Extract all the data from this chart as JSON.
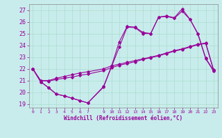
{
  "title": "",
  "xlabel": "Windchill (Refroidissement éolien,°C)",
  "bg_color": "#c8ecec",
  "line_color": "#990099",
  "grid_color": "#aaddcc",
  "ylim": [
    18.7,
    27.5
  ],
  "xlim": [
    -0.5,
    23.5
  ],
  "yticks": [
    19,
    20,
    21,
    22,
    23,
    24,
    25,
    26,
    27
  ],
  "xticks": [
    0,
    1,
    2,
    3,
    4,
    5,
    6,
    7,
    9,
    10,
    11,
    12,
    13,
    14,
    15,
    16,
    17,
    18,
    19,
    20,
    21,
    22,
    23
  ],
  "xtick_labels": [
    "0",
    "1",
    "2",
    "3",
    "4",
    "5",
    "6",
    "7",
    "9",
    "10",
    "11",
    "12",
    "13",
    "14",
    "15",
    "16",
    "17",
    "18",
    "19",
    "20",
    "21",
    "22",
    "23"
  ],
  "series": [
    {
      "x": [
        0,
        1,
        2,
        3,
        4,
        5,
        6,
        7,
        9,
        10,
        11,
        12,
        13,
        14,
        15,
        16,
        17,
        18,
        19,
        20,
        21,
        22,
        23
      ],
      "y": [
        22.0,
        20.9,
        20.4,
        19.85,
        19.7,
        19.5,
        19.3,
        19.1,
        20.5,
        22.2,
        24.3,
        25.6,
        25.55,
        25.1,
        25.0,
        26.4,
        26.5,
        26.35,
        27.1,
        26.2,
        25.0,
        22.9,
        21.85
      ]
    },
    {
      "x": [
        0,
        1,
        2,
        3,
        4,
        5,
        6,
        7,
        9,
        10,
        11,
        12,
        13,
        14,
        15,
        16,
        17,
        18,
        19,
        20,
        21,
        22,
        23
      ],
      "y": [
        22.0,
        20.9,
        20.4,
        19.85,
        19.7,
        19.5,
        19.3,
        19.1,
        20.45,
        22.15,
        23.85,
        25.55,
        25.5,
        25.0,
        25.0,
        26.4,
        26.45,
        26.3,
        26.9,
        26.2,
        24.95,
        22.85,
        21.8
      ]
    },
    {
      "x": [
        0,
        1,
        2,
        3,
        4,
        5,
        6,
        7,
        9,
        10,
        11,
        12,
        13,
        14,
        15,
        16,
        17,
        18,
        19,
        20,
        21,
        22,
        23
      ],
      "y": [
        22.0,
        21.0,
        20.95,
        21.1,
        21.2,
        21.3,
        21.45,
        21.55,
        21.85,
        22.1,
        22.3,
        22.45,
        22.6,
        22.8,
        22.95,
        23.1,
        23.3,
        23.5,
        23.65,
        23.85,
        24.05,
        24.15,
        21.85
      ]
    },
    {
      "x": [
        0,
        1,
        2,
        3,
        4,
        5,
        6,
        7,
        9,
        10,
        11,
        12,
        13,
        14,
        15,
        16,
        17,
        18,
        19,
        20,
        21,
        22,
        23
      ],
      "y": [
        22.0,
        21.0,
        21.0,
        21.2,
        21.35,
        21.5,
        21.65,
        21.75,
        22.0,
        22.25,
        22.4,
        22.55,
        22.7,
        22.85,
        23.0,
        23.15,
        23.35,
        23.55,
        23.7,
        23.9,
        24.1,
        24.2,
        21.9
      ]
    }
  ]
}
